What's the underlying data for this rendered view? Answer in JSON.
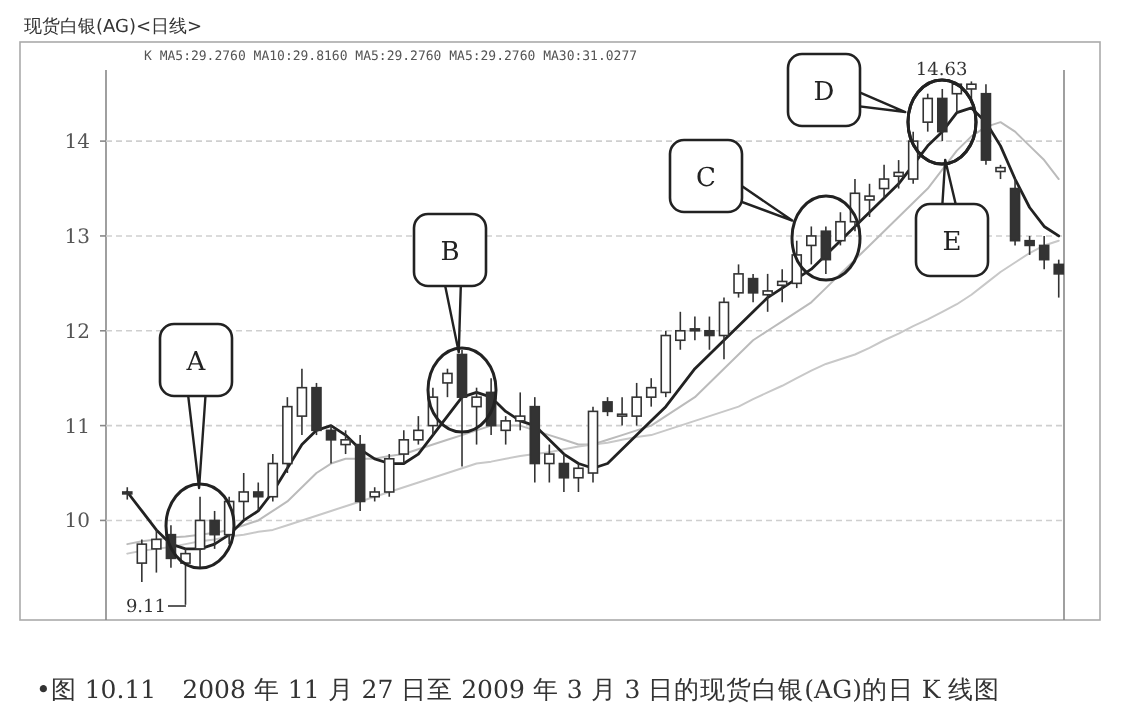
{
  "chart_data": {
    "type": "candlestick",
    "title": "现货白银(AG)<日线>",
    "categories": [
      null,
      null,
      null,
      null,
      null,
      null,
      null,
      null,
      null,
      null,
      null,
      null,
      null,
      null,
      null,
      null,
      null,
      null,
      null,
      null,
      null,
      null,
      null,
      null,
      null,
      null,
      null,
      null,
      null,
      null,
      null,
      null,
      null,
      null,
      null,
      null,
      null,
      null,
      null,
      null,
      null,
      null,
      null,
      null,
      null,
      null,
      null,
      null,
      null,
      null,
      null,
      null,
      null,
      null,
      null,
      null,
      null,
      null,
      null,
      null,
      null,
      null,
      null,
      null,
      null
    ],
    "ylim": [
      8.95,
      14.75
    ],
    "yticks": [
      10,
      11,
      12,
      13,
      14
    ],
    "grid": "y",
    "series": [
      {
        "type": "line",
        "color": "#bbbbbb",
        "values": [
          9.75,
          9.78,
          9.8,
          9.82,
          9.83,
          9.85,
          9.87,
          9.9,
          9.95,
          10.0,
          10.1,
          10.2,
          10.35,
          10.5,
          10.6,
          10.65,
          10.65,
          10.65,
          10.68,
          10.7,
          10.75,
          10.8,
          10.85,
          10.9,
          10.95,
          11.0,
          11.0,
          11.0,
          10.95,
          10.9,
          10.85,
          10.8,
          10.8,
          10.85,
          10.9,
          10.95,
          11.0,
          11.1,
          11.2,
          11.3,
          11.45,
          11.6,
          11.75,
          11.9,
          12.0,
          12.1,
          12.2,
          12.3,
          12.45,
          12.6,
          12.75,
          12.9,
          13.05,
          13.2,
          13.35,
          13.5,
          13.7,
          13.9,
          14.05,
          14.15,
          14.2,
          14.1,
          13.95,
          13.8,
          13.6
        ]
      },
      {
        "type": "line",
        "color": "#c8c8c8",
        "values": [
          9.65,
          9.68,
          9.7,
          9.72,
          9.75,
          9.78,
          9.8,
          9.83,
          9.85,
          9.88,
          9.9,
          9.95,
          10.0,
          10.05,
          10.1,
          10.15,
          10.2,
          10.25,
          10.3,
          10.35,
          10.4,
          10.45,
          10.5,
          10.55,
          10.6,
          10.62,
          10.65,
          10.68,
          10.7,
          10.72,
          10.75,
          10.78,
          10.8,
          10.82,
          10.85,
          10.88,
          10.9,
          10.95,
          11.0,
          11.05,
          11.1,
          11.15,
          11.2,
          11.28,
          11.35,
          11.42,
          11.5,
          11.58,
          11.65,
          11.7,
          11.75,
          11.82,
          11.9,
          11.97,
          12.05,
          12.12,
          12.2,
          12.28,
          12.38,
          12.5,
          12.62,
          12.72,
          12.82,
          12.9,
          12.95
        ]
      },
      {
        "type": "line",
        "color": "#222222",
        "values": [
          10.3,
          10.1,
          9.9,
          9.75,
          9.7,
          9.7,
          9.75,
          9.85,
          10.0,
          10.1,
          10.3,
          10.55,
          10.8,
          10.95,
          11.0,
          10.9,
          10.75,
          10.65,
          10.6,
          10.6,
          10.7,
          10.9,
          11.1,
          11.3,
          11.35,
          11.3,
          11.15,
          11.05,
          11.0,
          10.85,
          10.7,
          10.6,
          10.55,
          10.6,
          10.75,
          10.9,
          11.05,
          11.2,
          11.4,
          11.6,
          11.75,
          11.9,
          12.05,
          12.2,
          12.35,
          12.45,
          12.55,
          12.65,
          12.8,
          12.95,
          13.1,
          13.25,
          13.4,
          13.55,
          13.75,
          13.95,
          14.1,
          14.3,
          14.35,
          14.2,
          13.95,
          13.6,
          13.3,
          13.1,
          13.0
        ]
      },
      {
        "color": "#333333",
        "ohlc": [
          [
            10.3,
            10.35,
            10.22,
            10.28
          ],
          [
            9.55,
            9.8,
            9.35,
            9.75
          ],
          [
            9.7,
            9.9,
            9.45,
            9.8
          ],
          [
            9.85,
            9.95,
            9.5,
            9.6
          ],
          [
            9.55,
            9.7,
            9.11,
            9.65
          ],
          [
            9.7,
            10.25,
            9.5,
            10.0
          ],
          [
            10.0,
            10.1,
            9.7,
            9.85
          ],
          [
            9.85,
            10.25,
            9.75,
            10.2
          ],
          [
            10.2,
            10.5,
            10.0,
            10.3
          ],
          [
            10.3,
            10.4,
            10.1,
            10.25
          ],
          [
            10.25,
            10.7,
            10.2,
            10.6
          ],
          [
            10.6,
            11.3,
            10.5,
            11.2
          ],
          [
            11.1,
            11.6,
            10.9,
            11.4
          ],
          [
            11.4,
            11.45,
            10.9,
            10.95
          ],
          [
            10.95,
            11.0,
            10.6,
            10.85
          ],
          [
            10.8,
            10.95,
            10.7,
            10.85
          ],
          [
            10.8,
            10.9,
            10.1,
            10.2
          ],
          [
            10.25,
            10.35,
            10.2,
            10.3
          ],
          [
            10.3,
            10.7,
            10.25,
            10.65
          ],
          [
            10.7,
            10.95,
            10.6,
            10.85
          ],
          [
            10.85,
            11.1,
            10.8,
            10.95
          ],
          [
            11.0,
            11.4,
            10.9,
            11.3
          ],
          [
            11.45,
            11.6,
            11.3,
            11.55
          ],
          [
            11.75,
            11.8,
            10.57,
            11.3
          ],
          [
            11.2,
            11.4,
            10.8,
            11.3
          ],
          [
            11.35,
            11.5,
            10.9,
            11.0
          ],
          [
            10.95,
            11.1,
            10.8,
            11.05
          ],
          [
            11.05,
            11.35,
            10.95,
            11.1
          ],
          [
            11.2,
            11.3,
            10.4,
            10.6
          ],
          [
            10.6,
            10.8,
            10.4,
            10.7
          ],
          [
            10.6,
            10.7,
            10.3,
            10.45
          ],
          [
            10.45,
            10.6,
            10.3,
            10.55
          ],
          [
            10.5,
            11.2,
            10.4,
            11.15
          ],
          [
            11.25,
            11.3,
            11.1,
            11.15
          ],
          [
            11.1,
            11.3,
            11.0,
            11.12
          ],
          [
            11.1,
            11.45,
            11.0,
            11.3
          ],
          [
            11.3,
            11.5,
            11.2,
            11.4
          ],
          [
            11.35,
            12.0,
            11.3,
            11.95
          ],
          [
            11.9,
            12.2,
            11.8,
            12.0
          ],
          [
            12.02,
            12.15,
            11.9,
            12.0
          ],
          [
            12.0,
            12.15,
            11.8,
            11.95
          ],
          [
            11.95,
            12.35,
            11.7,
            12.3
          ],
          [
            12.4,
            12.7,
            12.35,
            12.6
          ],
          [
            12.55,
            12.6,
            12.3,
            12.4
          ],
          [
            12.38,
            12.6,
            12.2,
            12.42
          ],
          [
            12.48,
            12.65,
            12.3,
            12.52
          ],
          [
            12.5,
            12.95,
            12.45,
            12.8
          ],
          [
            12.9,
            13.1,
            12.7,
            13.0
          ],
          [
            13.05,
            13.1,
            12.6,
            12.75
          ],
          [
            12.95,
            13.25,
            12.9,
            13.15
          ],
          [
            13.15,
            13.6,
            13.05,
            13.45
          ],
          [
            13.38,
            13.55,
            13.2,
            13.42
          ],
          [
            13.5,
            13.75,
            13.4,
            13.6
          ],
          [
            13.63,
            13.8,
            13.5,
            13.67
          ],
          [
            13.6,
            14.1,
            13.55,
            14.0
          ],
          [
            14.2,
            14.5,
            14.1,
            14.45
          ],
          [
            14.45,
            14.55,
            14.0,
            14.1
          ],
          [
            14.5,
            14.6,
            14.3,
            14.6
          ],
          [
            14.55,
            14.63,
            14.4,
            14.6
          ],
          [
            14.5,
            14.6,
            13.75,
            13.8
          ],
          [
            13.68,
            13.75,
            13.6,
            13.72
          ],
          [
            13.5,
            13.6,
            12.9,
            12.95
          ],
          [
            12.95,
            13.0,
            12.8,
            12.9
          ],
          [
            12.9,
            13.0,
            12.65,
            12.75
          ],
          [
            12.7,
            12.75,
            12.35,
            12.6
          ]
        ]
      }
    ],
    "annotations": [
      "A",
      "B",
      "C",
      "D",
      "E",
      {
        "text": "14.63",
        "y": 14.63
      },
      "9.11",
      "K  MA5:29.2760  MA10:29.8160  MA5:29.2760  MA5:29.2760  MA30:31.0277",
      "•图 10.11　2008 年 11 月 27 日至 2009 年 3 月 3 日的现货白银(AG)的日 K 线图"
    ]
  }
}
